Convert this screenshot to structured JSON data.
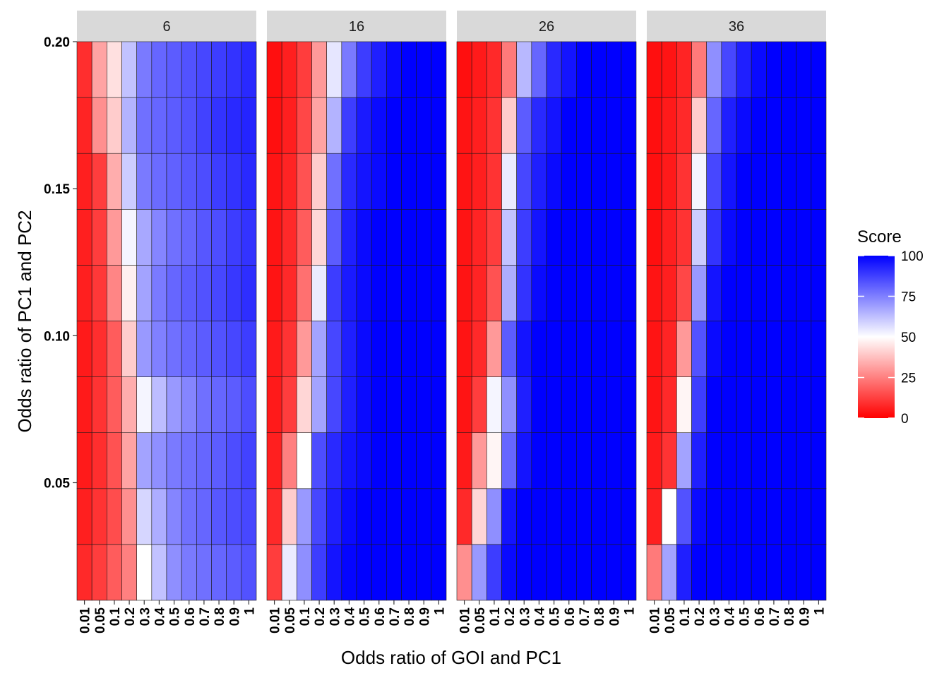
{
  "chart_data": {
    "type": "heatmap",
    "xlabel": "Odds ratio of GOI and PC1",
    "ylabel": "Odds ratio of PC1 and PC2",
    "x_categories": [
      "0.01",
      "0.05",
      "0.1",
      "0.2",
      "0.3",
      "0.4",
      "0.5",
      "0.6",
      "0.7",
      "0.8",
      "0.9",
      "1"
    ],
    "y_values": [
      0.02,
      0.04,
      0.06,
      0.08,
      0.1,
      0.12,
      0.14,
      0.16,
      0.18,
      0.2
    ],
    "y_ticks": [
      "0.05",
      "0.10",
      "0.15",
      "0.20"
    ],
    "y_tick_values": [
      0.05,
      0.1,
      0.15,
      0.2
    ],
    "ylim": [
      0.01,
      0.2
    ],
    "legend": {
      "title": "Score",
      "labels": [
        "0",
        "25",
        "50",
        "75",
        "100"
      ],
      "values": [
        0,
        25,
        50,
        75,
        100
      ],
      "placement": "right",
      "colors": {
        "low": "#ff0000",
        "mid": "#ffffff",
        "high": "#0000ff"
      }
    },
    "panels": [
      {
        "label": "6",
        "rows": [
          [
            8,
            12,
            18,
            25,
            50,
            62,
            72,
            76,
            78,
            80,
            82,
            84
          ],
          [
            6,
            10,
            15,
            28,
            58,
            66,
            74,
            78,
            80,
            83,
            85,
            86
          ],
          [
            5,
            9,
            16,
            32,
            68,
            72,
            76,
            78,
            80,
            82,
            85,
            87
          ],
          [
            5,
            10,
            18,
            34,
            52,
            63,
            70,
            74,
            78,
            80,
            82,
            85
          ],
          [
            5,
            9,
            18,
            40,
            70,
            75,
            78,
            80,
            82,
            84,
            86,
            88
          ],
          [
            6,
            11,
            26,
            47,
            68,
            76,
            80,
            82,
            84,
            86,
            89,
            91
          ],
          [
            6,
            12,
            30,
            52,
            67,
            74,
            78,
            80,
            83,
            85,
            88,
            90
          ],
          [
            6,
            12,
            34,
            60,
            76,
            79,
            81,
            83,
            85,
            88,
            90,
            92
          ],
          [
            7,
            28,
            40,
            65,
            78,
            80,
            82,
            84,
            87,
            90,
            92,
            93
          ],
          [
            9,
            32,
            44,
            62,
            76,
            80,
            82,
            84,
            86,
            88,
            90,
            92
          ]
        ]
      },
      {
        "label": "16",
        "rows": [
          [
            12,
            54,
            72,
            88,
            96,
            99,
            100,
            100,
            100,
            100,
            100,
            100
          ],
          [
            8,
            40,
            70,
            86,
            94,
            98,
            100,
            100,
            100,
            100,
            100,
            100
          ],
          [
            6,
            25,
            50,
            85,
            92,
            96,
            98,
            100,
            100,
            100,
            100,
            100
          ],
          [
            5,
            12,
            42,
            68,
            86,
            94,
            98,
            100,
            100,
            100,
            100,
            100
          ],
          [
            5,
            10,
            30,
            68,
            86,
            94,
            98,
            100,
            100,
            100,
            100,
            100
          ],
          [
            4,
            8,
            22,
            54,
            88,
            95,
            98,
            100,
            100,
            100,
            100,
            100
          ],
          [
            4,
            8,
            18,
            42,
            82,
            94,
            98,
            100,
            100,
            100,
            100,
            100
          ],
          [
            4,
            7,
            16,
            40,
            78,
            92,
            96,
            98,
            100,
            100,
            100,
            100
          ],
          [
            3,
            6,
            14,
            32,
            65,
            88,
            95,
            98,
            100,
            100,
            100,
            100
          ],
          [
            3,
            6,
            12,
            30,
            55,
            76,
            88,
            94,
            98,
            100,
            100,
            100
          ]
        ]
      },
      {
        "label": "26",
        "rows": [
          [
            28,
            70,
            88,
            98,
            100,
            100,
            100,
            100,
            100,
            100,
            100,
            100
          ],
          [
            8,
            42,
            72,
            96,
            100,
            100,
            100,
            100,
            100,
            100,
            100,
            100
          ],
          [
            5,
            30,
            48,
            80,
            96,
            100,
            100,
            100,
            100,
            100,
            100,
            100
          ],
          [
            4,
            12,
            52,
            72,
            94,
            100,
            100,
            100,
            100,
            100,
            100,
            100
          ],
          [
            4,
            8,
            30,
            82,
            96,
            100,
            100,
            100,
            100,
            100,
            100,
            100
          ],
          [
            4,
            7,
            16,
            66,
            90,
            98,
            100,
            100,
            100,
            100,
            100,
            100
          ],
          [
            4,
            7,
            12,
            62,
            88,
            96,
            100,
            100,
            100,
            100,
            100,
            100
          ],
          [
            4,
            6,
            10,
            54,
            86,
            94,
            98,
            100,
            100,
            100,
            100,
            100
          ],
          [
            4,
            6,
            10,
            40,
            82,
            92,
            96,
            100,
            100,
            100,
            100,
            100
          ],
          [
            3,
            5,
            8,
            24,
            64,
            80,
            92,
            96,
            100,
            100,
            100,
            100
          ]
        ]
      },
      {
        "label": "36",
        "rows": [
          [
            24,
            68,
            94,
            100,
            100,
            100,
            100,
            100,
            100,
            100,
            100,
            100
          ],
          [
            6,
            50,
            84,
            98,
            100,
            100,
            100,
            100,
            100,
            100,
            100,
            100
          ],
          [
            5,
            10,
            68,
            94,
            100,
            100,
            100,
            100,
            100,
            100,
            100,
            100
          ],
          [
            4,
            8,
            48,
            88,
            100,
            100,
            100,
            100,
            100,
            100,
            100,
            100
          ],
          [
            4,
            7,
            30,
            84,
            98,
            100,
            100,
            100,
            100,
            100,
            100,
            100
          ],
          [
            4,
            6,
            14,
            70,
            96,
            100,
            100,
            100,
            100,
            100,
            100,
            100
          ],
          [
            3,
            6,
            10,
            60,
            90,
            98,
            100,
            100,
            100,
            100,
            100,
            100
          ],
          [
            3,
            5,
            10,
            52,
            86,
            96,
            100,
            100,
            100,
            100,
            100,
            100
          ],
          [
            3,
            5,
            8,
            40,
            80,
            94,
            98,
            100,
            100,
            100,
            100,
            100
          ],
          [
            3,
            4,
            7,
            24,
            72,
            86,
            94,
            98,
            100,
            100,
            100,
            100
          ]
        ]
      }
    ]
  }
}
